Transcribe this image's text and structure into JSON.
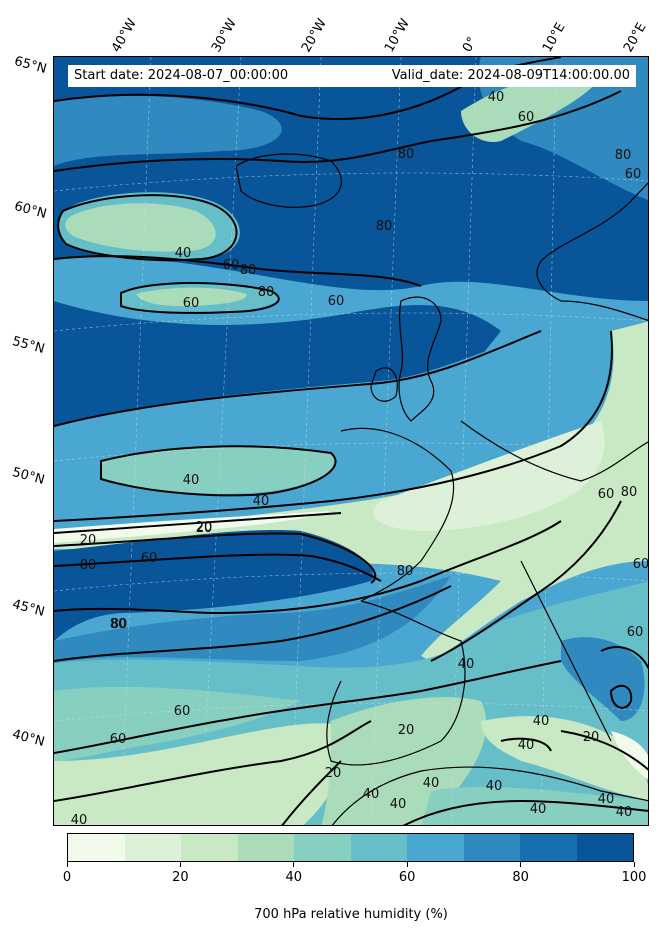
{
  "header": {
    "start_date": "Start date: 2024-08-07_00:00:00",
    "valid_date": "Valid_date: 2024-08-09T14:00:00.00"
  },
  "longitude_labels": [
    "40°W",
    "30°W",
    "20°W",
    "10°W",
    "0°",
    "10°E",
    "20°E"
  ],
  "latitude_labels": [
    "65°N",
    "60°N",
    "55°N",
    "50°N",
    "45°N",
    "40°N"
  ],
  "contour_labels": [
    "40",
    "60",
    "80",
    "40",
    "60",
    "80",
    "60",
    "40",
    "60",
    "80",
    "80",
    "60",
    "40",
    "20",
    "20",
    "60",
    "80",
    "80",
    "40",
    "80",
    "60",
    "60",
    "40",
    "20",
    "40",
    "40",
    "20",
    "40",
    "40",
    "40",
    "40",
    "60",
    "60",
    "20",
    "80",
    "60",
    "80",
    "40",
    "40",
    "40",
    "80",
    "20"
  ],
  "colorbar": {
    "title": "700 hPa relative humidity (%)",
    "tick_labels": [
      "0",
      "20",
      "40",
      "60",
      "80",
      "100"
    ],
    "colors": [
      "#f2faec",
      "#ddf1d8",
      "#c9e9c4",
      "#aadcb9",
      "#87cfc0",
      "#66bec9",
      "#4aa7d1",
      "#308ac0",
      "#176fb0",
      "#08559a"
    ]
  }
}
